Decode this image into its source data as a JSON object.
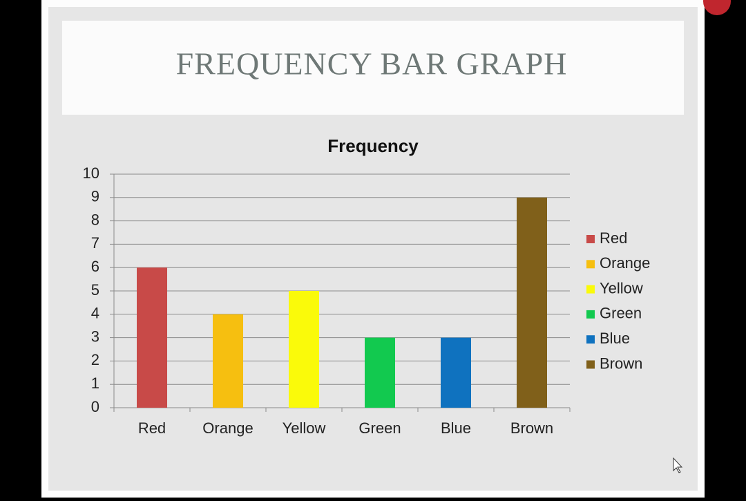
{
  "slide": {
    "title": "FREQUENCY BAR GRAPH"
  },
  "chart_data": {
    "type": "bar",
    "title": "Frequency",
    "categories": [
      "Red",
      "Orange",
      "Yellow",
      "Green",
      "Blue",
      "Brown"
    ],
    "values": [
      6,
      4,
      5,
      3,
      3,
      9
    ],
    "colors": [
      "#c84a48",
      "#f6bf10",
      "#fafa0a",
      "#12c94f",
      "#0f72bf",
      "#80601a"
    ],
    "ylim": [
      0,
      10
    ],
    "yticks": [
      0,
      1,
      2,
      3,
      4,
      5,
      6,
      7,
      8,
      9,
      10
    ],
    "grid": true,
    "legend": "right"
  }
}
